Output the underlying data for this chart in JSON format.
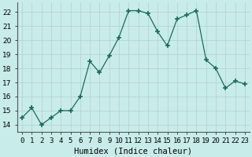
{
  "x": [
    0,
    1,
    2,
    3,
    4,
    5,
    6,
    7,
    8,
    9,
    10,
    11,
    12,
    13,
    14,
    15,
    16,
    17,
    18,
    19,
    20,
    21,
    22,
    23
  ],
  "y": [
    14.5,
    15.2,
    14.0,
    14.5,
    15.0,
    15.0,
    16.0,
    18.5,
    17.7,
    18.9,
    20.2,
    22.1,
    22.1,
    21.9,
    20.6,
    19.6,
    21.5,
    21.8,
    22.1,
    18.6,
    18.0,
    16.6,
    17.1,
    16.9
  ],
  "line_color": "#1a6b5a",
  "marker": "+",
  "marker_size": 4,
  "bg_color": "#c8ecea",
  "grid_color": "#b0d0ce",
  "xlabel": "Humidex (Indice chaleur)",
  "ylabel_ticks": [
    14,
    15,
    16,
    17,
    18,
    19,
    20,
    21,
    22
  ],
  "ylim": [
    13.5,
    22.7
  ],
  "xlim": [
    -0.5,
    23.5
  ],
  "xtick_labels": [
    "0",
    "1",
    "2",
    "3",
    "4",
    "5",
    "6",
    "7",
    "8",
    "9",
    "10",
    "11",
    "12",
    "13",
    "14",
    "15",
    "16",
    "17",
    "18",
    "19",
    "20",
    "21",
    "22",
    "23"
  ],
  "xlabel_fontsize": 7.5,
  "tick_fontsize": 6.5
}
